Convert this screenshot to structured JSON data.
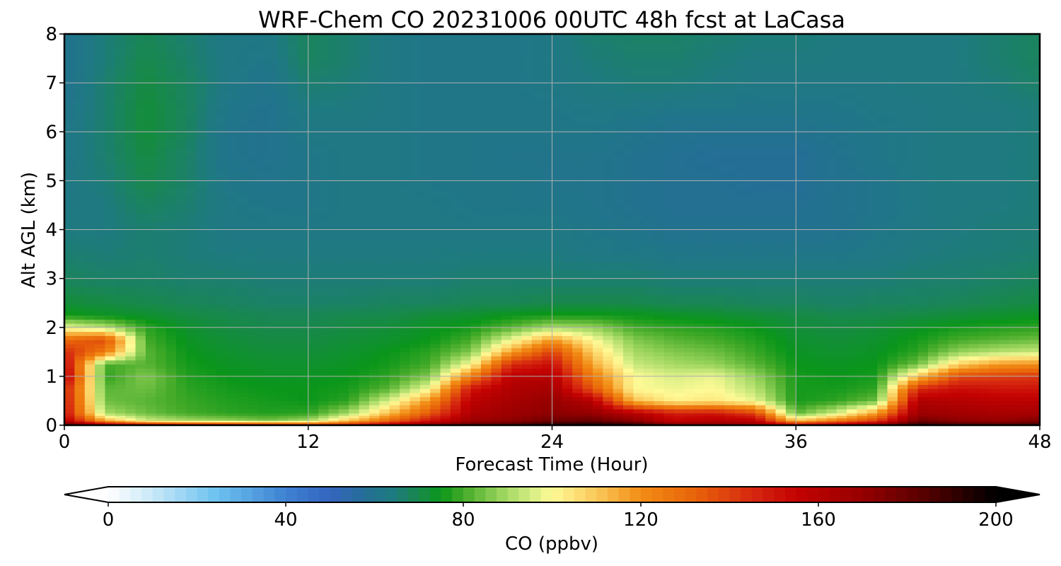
{
  "chart_data": {
    "type": "heatmap",
    "title": "WRF-Chem CO  20231006 00UTC 48h fcst at LaCasa",
    "xlabel": "Forecast Time (Hour)",
    "ylabel": "Alt AGL (km)",
    "xlim": [
      0,
      48
    ],
    "ylim": [
      0,
      8
    ],
    "xticks": [
      0,
      12,
      24,
      36,
      48
    ],
    "yticks": [
      0,
      1,
      2,
      3,
      4,
      5,
      6,
      7,
      8
    ],
    "grid": true,
    "colorbar": {
      "label": "CO  (ppbv)",
      "min": 0,
      "max": 200,
      "ticks": [
        0,
        40,
        80,
        120,
        160,
        200
      ],
      "extend": "both",
      "placement": "bottom"
    },
    "x": [
      0,
      2,
      4,
      6,
      8,
      10,
      12,
      14,
      16,
      18,
      20,
      22,
      24,
      26,
      28,
      30,
      32,
      34,
      36,
      38,
      40,
      42,
      44,
      46,
      48
    ],
    "y": [
      0,
      0.1,
      0.25,
      0.5,
      0.75,
      1.0,
      1.25,
      1.5,
      1.75,
      2.0,
      2.25,
      2.5,
      3.0,
      3.5,
      4.0,
      4.5,
      5.0,
      5.5,
      6.0,
      6.5,
      7.0,
      7.5,
      8.0
    ],
    "values": [
      [
        190,
        175,
        170,
        165,
        162,
        158,
        150,
        155,
        168,
        180,
        185,
        188,
        198,
        200,
        196,
        180,
        178,
        172,
        165,
        172,
        180,
        195,
        190,
        188,
        190
      ],
      [
        160,
        115,
        95,
        90,
        88,
        85,
        90,
        110,
        130,
        150,
        168,
        172,
        178,
        180,
        172,
        155,
        160,
        158,
        110,
        125,
        140,
        178,
        172,
        170,
        175
      ],
      [
        152,
        90,
        84,
        80,
        78,
        77,
        78,
        90,
        112,
        135,
        162,
        168,
        172,
        170,
        160,
        148,
        150,
        140,
        82,
        95,
        118,
        168,
        166,
        164,
        165
      ],
      [
        150,
        84,
        82,
        79,
        77,
        76,
        75,
        78,
        96,
        120,
        158,
        165,
        170,
        160,
        112,
        102,
        104,
        98,
        76,
        78,
        84,
        162,
        160,
        158,
        158
      ],
      [
        148,
        82,
        84,
        78,
        76,
        75,
        75,
        76,
        82,
        100,
        150,
        162,
        165,
        135,
        100,
        98,
        100,
        92,
        76,
        76,
        78,
        145,
        152,
        150,
        150
      ],
      [
        160,
        78,
        86,
        77,
        75,
        74,
        74,
        75,
        78,
        86,
        125,
        158,
        160,
        125,
        100,
        96,
        98,
        88,
        76,
        75,
        76,
        110,
        138,
        140,
        142
      ],
      [
        155,
        80,
        82,
        76,
        74,
        73,
        73,
        74,
        76,
        80,
        100,
        145,
        152,
        115,
        94,
        90,
        88,
        82,
        75,
        74,
        75,
        84,
        108,
        118,
        120
      ],
      [
        145,
        125,
        82,
        75,
        73,
        72,
        72,
        73,
        75,
        78,
        86,
        118,
        140,
        108,
        90,
        86,
        84,
        79,
        74,
        73,
        74,
        78,
        88,
        92,
        94
      ],
      [
        130,
        138,
        80,
        74,
        72,
        71,
        71,
        72,
        73,
        75,
        80,
        98,
        118,
        100,
        86,
        82,
        80,
        77,
        73,
        72,
        73,
        76,
        80,
        82,
        84
      ],
      [
        98,
        92,
        78,
        73,
        71,
        70,
        70,
        71,
        72,
        74,
        76,
        82,
        90,
        88,
        80,
        78,
        77,
        75,
        72,
        71,
        72,
        74,
        76,
        77,
        78
      ],
      [
        76,
        74,
        73,
        71,
        70,
        69,
        69,
        70,
        70,
        72,
        73,
        75,
        76,
        76,
        75,
        74,
        73,
        72,
        71,
        70,
        70,
        71,
        72,
        73,
        74
      ],
      [
        72,
        71,
        70,
        69,
        68,
        67,
        67,
        67,
        68,
        68,
        69,
        69,
        70,
        70,
        70,
        69,
        69,
        68,
        68,
        67,
        68,
        68,
        69,
        70,
        71
      ],
      [
        68,
        67,
        67,
        66,
        66,
        65,
        65,
        65,
        65,
        65,
        66,
        66,
        66,
        66,
        66,
        65,
        65,
        65,
        65,
        65,
        65,
        66,
        66,
        67,
        68
      ],
      [
        66,
        65,
        66,
        65,
        64,
        64,
        64,
        64,
        64,
        64,
        64,
        64,
        64,
        63,
        63,
        62,
        62,
        62,
        62,
        62,
        63,
        64,
        65,
        65,
        66
      ],
      [
        64,
        64,
        66,
        65,
        63,
        63,
        63,
        63,
        63,
        63,
        63,
        63,
        63,
        62,
        61,
        60,
        60,
        60,
        60,
        60,
        62,
        63,
        64,
        65,
        65
      ],
      [
        63,
        64,
        68,
        66,
        63,
        62,
        62,
        63,
        63,
        63,
        62,
        62,
        62,
        61,
        60,
        59,
        59,
        59,
        59,
        60,
        61,
        63,
        64,
        64,
        65
      ],
      [
        63,
        65,
        70,
        67,
        62,
        61,
        62,
        63,
        63,
        62,
        62,
        62,
        61,
        61,
        60,
        59,
        59,
        58,
        58,
        60,
        61,
        63,
        64,
        64,
        65
      ],
      [
        62,
        66,
        71,
        67,
        61,
        60,
        62,
        63,
        63,
        62,
        62,
        61,
        61,
        61,
        60,
        59,
        58,
        58,
        58,
        60,
        62,
        63,
        64,
        64,
        65
      ],
      [
        62,
        66,
        72,
        68,
        61,
        60,
        63,
        63,
        63,
        62,
        62,
        62,
        62,
        62,
        61,
        60,
        60,
        60,
        60,
        61,
        62,
        63,
        64,
        64,
        65
      ],
      [
        61,
        66,
        72,
        68,
        62,
        60,
        64,
        64,
        63,
        62,
        62,
        62,
        62,
        63,
        63,
        62,
        62,
        62,
        62,
        62,
        63,
        63,
        64,
        64,
        65
      ],
      [
        60,
        66,
        71,
        68,
        63,
        61,
        66,
        65,
        63,
        62,
        62,
        62,
        63,
        64,
        65,
        65,
        64,
        63,
        63,
        63,
        63,
        64,
        64,
        65,
        67
      ],
      [
        60,
        65,
        70,
        67,
        63,
        62,
        68,
        66,
        63,
        62,
        62,
        62,
        63,
        65,
        66,
        66,
        65,
        64,
        64,
        64,
        64,
        64,
        64,
        66,
        68
      ],
      [
        60,
        65,
        69,
        66,
        63,
        63,
        68,
        66,
        63,
        62,
        62,
        62,
        63,
        66,
        67,
        67,
        66,
        65,
        65,
        64,
        64,
        64,
        64,
        66,
        68
      ]
    ]
  }
}
